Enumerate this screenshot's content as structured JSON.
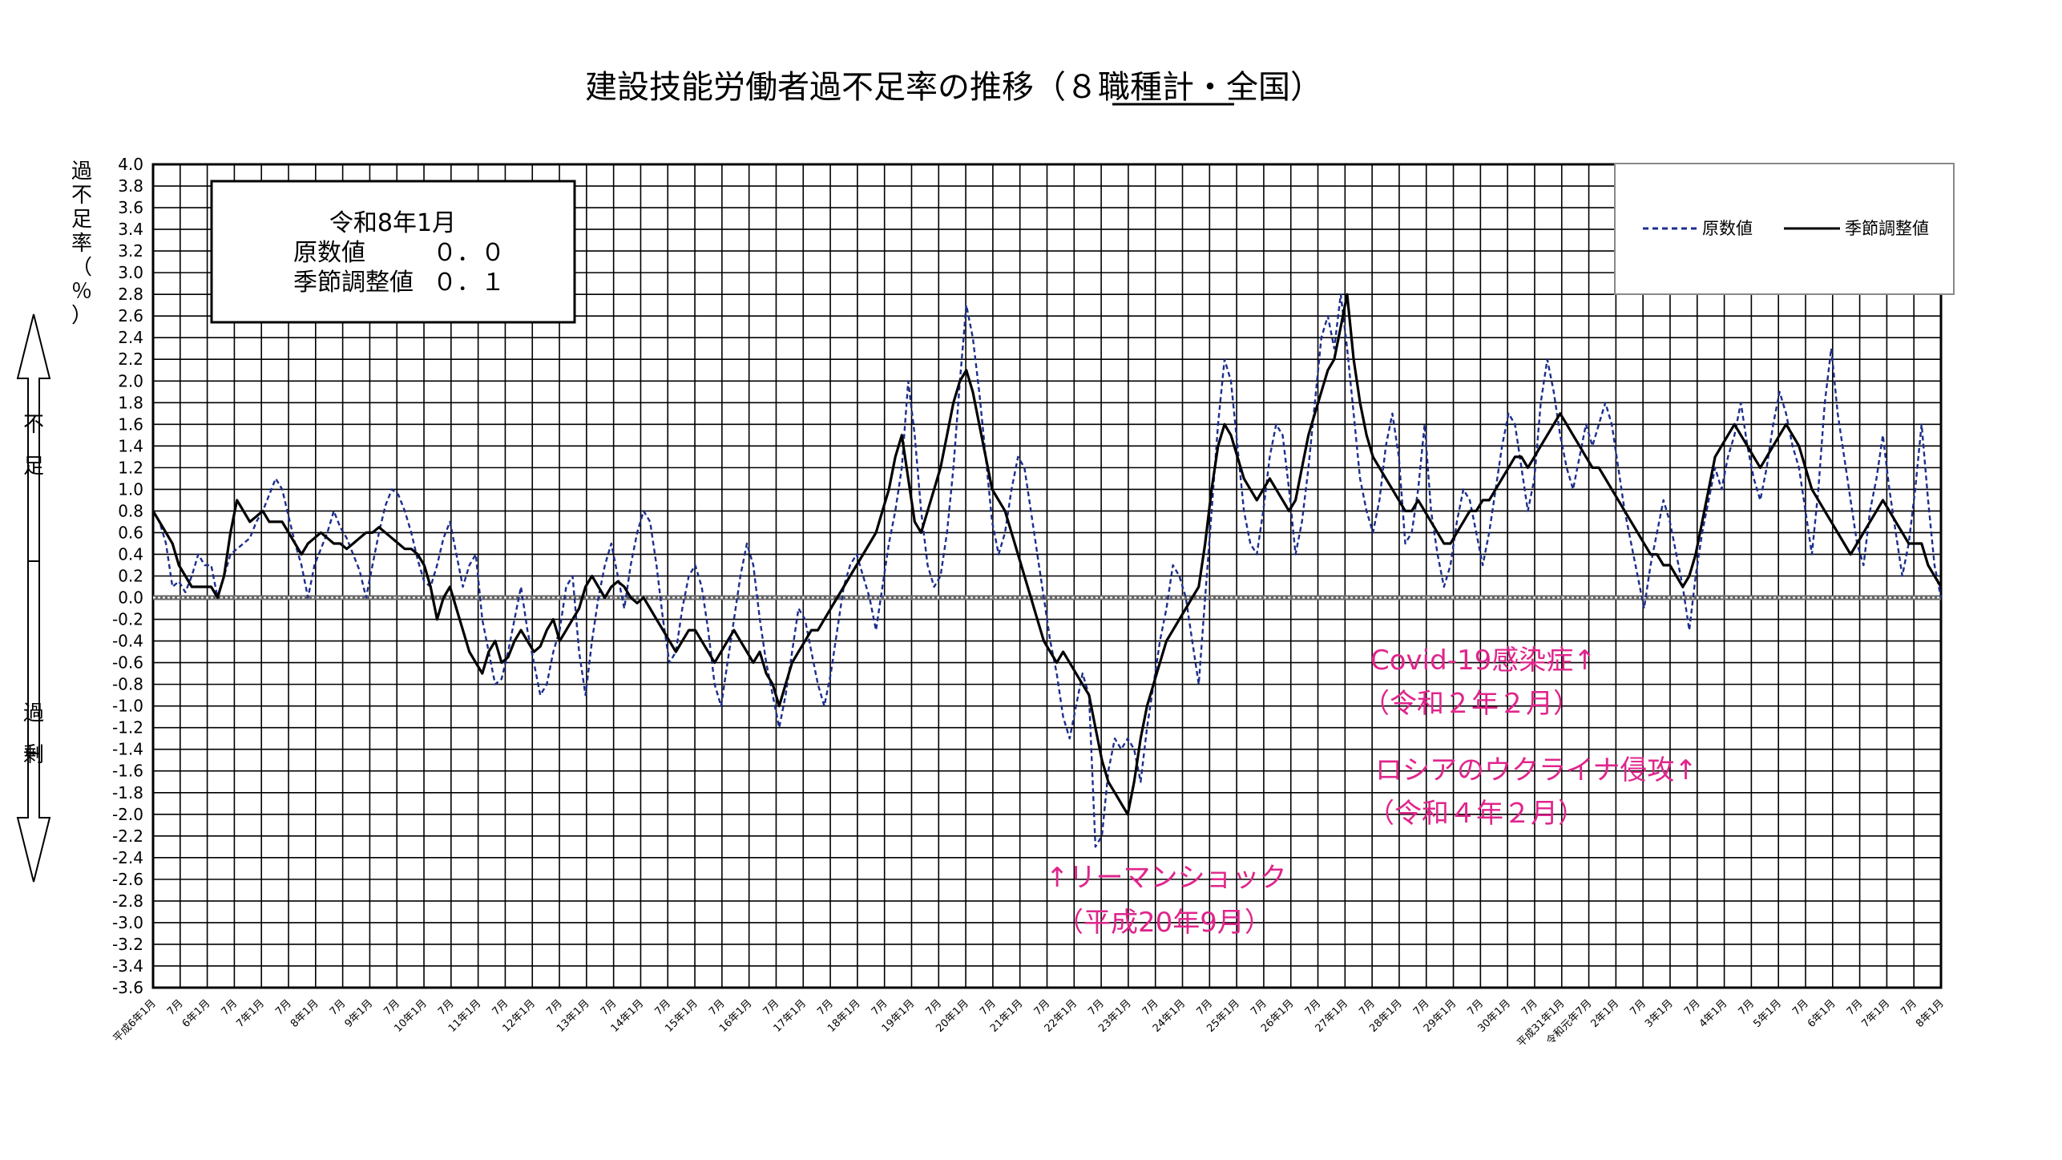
{
  "chart_data": {
    "type": "line",
    "title": "建設技能労働者過不足率の推移（８職種計・全国）",
    "title_underlined_part": "８職種計",
    "ylabel": "過不足率（％）",
    "y_direction_labels": {
      "top": "不足",
      "bottom": "過剰"
    },
    "ylim": [
      -3.6,
      4.0
    ],
    "ytick_step": 0.2,
    "grid": true,
    "legend_position": "top-right",
    "info_box": {
      "line1": "令和8年1月",
      "line2_label": "原数値",
      "line2_value": "０．０",
      "line3_label": "季節調整値",
      "line3_value": "０．１"
    },
    "series": [
      {
        "name": "原数値",
        "style": "dashed",
        "color": "#1c2e8c",
        "values": [
          0.8,
          0.7,
          0.5,
          0.1,
          0.15,
          0.05,
          0.2,
          0.4,
          0.3,
          0.3,
          0.0,
          0.2,
          0.4,
          0.45,
          0.5,
          0.55,
          0.7,
          0.8,
          0.95,
          1.1,
          1.0,
          0.75,
          0.5,
          0.3,
          0.0,
          0.3,
          0.45,
          0.6,
          0.8,
          0.65,
          0.55,
          0.4,
          0.25,
          0.0,
          0.3,
          0.6,
          0.85,
          1.0,
          0.95,
          0.8,
          0.6,
          0.35,
          0.15,
          0.1,
          0.3,
          0.55,
          0.7,
          0.4,
          0.1,
          0.3,
          0.4,
          -0.2,
          -0.5,
          -0.8,
          -0.75,
          -0.5,
          -0.2,
          0.1,
          -0.3,
          -0.6,
          -0.9,
          -0.8,
          -0.5,
          -0.3,
          0.1,
          0.2,
          -0.5,
          -0.9,
          -0.4,
          0.0,
          0.3,
          0.5,
          0.2,
          -0.1,
          0.3,
          0.6,
          0.8,
          0.7,
          0.3,
          -0.2,
          -0.6,
          -0.5,
          -0.1,
          0.2,
          0.3,
          0.1,
          -0.3,
          -0.8,
          -1.0,
          -0.6,
          -0.2,
          0.2,
          0.5,
          0.3,
          -0.2,
          -0.6,
          -0.9,
          -1.2,
          -0.9,
          -0.5,
          -0.1,
          -0.2,
          -0.5,
          -0.8,
          -1.0,
          -0.7,
          -0.3,
          0.1,
          0.3,
          0.4,
          0.2,
          0.0,
          -0.3,
          0.1,
          0.5,
          0.8,
          1.2,
          2.0,
          1.5,
          0.8,
          0.3,
          0.1,
          0.2,
          0.6,
          1.2,
          2.0,
          2.7,
          2.4,
          1.9,
          1.3,
          0.7,
          0.4,
          0.6,
          1.0,
          1.3,
          1.2,
          0.8,
          0.4,
          0.0,
          -0.4,
          -0.7,
          -1.1,
          -1.3,
          -1.0,
          -0.7,
          -0.9,
          -2.3,
          -2.2,
          -1.6,
          -1.3,
          -1.4,
          -1.3,
          -1.4,
          -1.7,
          -1.2,
          -0.8,
          -0.4,
          -0.1,
          0.3,
          0.2,
          0.0,
          -0.4,
          -0.8,
          0.0,
          0.8,
          1.6,
          2.2,
          2.0,
          1.4,
          0.8,
          0.5,
          0.4,
          0.8,
          1.3,
          1.6,
          1.5,
          1.0,
          0.4,
          0.7,
          1.2,
          1.8,
          2.4,
          2.6,
          2.3,
          2.8,
          2.3,
          1.7,
          1.1,
          0.8,
          0.6,
          0.9,
          1.4,
          1.7,
          1.3,
          0.5,
          0.6,
          1.0,
          1.6,
          0.8,
          0.4,
          0.1,
          0.3,
          0.7,
          1.0,
          0.9,
          0.6,
          0.3,
          0.6,
          1.0,
          1.4,
          1.7,
          1.6,
          1.2,
          0.8,
          1.1,
          1.8,
          2.2,
          1.9,
          1.5,
          1.2,
          1.0,
          1.3,
          1.6,
          1.4,
          1.6,
          1.8,
          1.6,
          1.2,
          0.8,
          0.5,
          0.2,
          -0.1,
          0.3,
          0.6,
          0.9,
          0.7,
          0.4,
          0.1,
          -0.3,
          0.2,
          0.6,
          0.9,
          1.2,
          1.0,
          1.3,
          1.5,
          1.8,
          1.4,
          1.1,
          0.9,
          1.2,
          1.6,
          1.9,
          1.7,
          1.4,
          1.2,
          0.8,
          0.4,
          1.0,
          1.8,
          2.3,
          1.7,
          1.3,
          0.9,
          0.5,
          0.3,
          0.8,
          1.1,
          1.5,
          1.0,
          0.6,
          0.2,
          0.5,
          1.0,
          1.6,
          0.9,
          0.3,
          0.0
        ]
      },
      {
        "name": "季節調整値",
        "style": "solid",
        "color": "#000000",
        "values": [
          0.8,
          0.7,
          0.6,
          0.5,
          0.3,
          0.2,
          0.1,
          0.1,
          0.1,
          0.1,
          0.0,
          0.2,
          0.6,
          0.9,
          0.8,
          0.7,
          0.75,
          0.8,
          0.7,
          0.7,
          0.7,
          0.6,
          0.5,
          0.4,
          0.5,
          0.55,
          0.6,
          0.55,
          0.5,
          0.5,
          0.45,
          0.5,
          0.55,
          0.6,
          0.6,
          0.65,
          0.6,
          0.55,
          0.5,
          0.45,
          0.45,
          0.4,
          0.3,
          0.1,
          -0.2,
          0.0,
          0.1,
          -0.1,
          -0.3,
          -0.5,
          -0.6,
          -0.7,
          -0.5,
          -0.4,
          -0.6,
          -0.55,
          -0.4,
          -0.3,
          -0.4,
          -0.5,
          -0.45,
          -0.3,
          -0.2,
          -0.4,
          -0.3,
          -0.2,
          -0.1,
          0.1,
          0.2,
          0.1,
          0.0,
          0.1,
          0.15,
          0.1,
          0.0,
          -0.05,
          0.0,
          -0.1,
          -0.2,
          -0.3,
          -0.4,
          -0.5,
          -0.4,
          -0.3,
          -0.3,
          -0.4,
          -0.5,
          -0.6,
          -0.5,
          -0.4,
          -0.3,
          -0.4,
          -0.5,
          -0.6,
          -0.5,
          -0.7,
          -0.8,
          -1.0,
          -0.8,
          -0.6,
          -0.5,
          -0.4,
          -0.3,
          -0.3,
          -0.2,
          -0.1,
          0.0,
          0.1,
          0.2,
          0.3,
          0.4,
          0.5,
          0.6,
          0.8,
          1.0,
          1.3,
          1.5,
          1.1,
          0.7,
          0.6,
          0.8,
          1.0,
          1.2,
          1.5,
          1.8,
          2.0,
          2.1,
          1.9,
          1.6,
          1.3,
          1.0,
          0.9,
          0.8,
          0.6,
          0.4,
          0.2,
          0.0,
          -0.2,
          -0.4,
          -0.5,
          -0.6,
          -0.5,
          -0.6,
          -0.7,
          -0.8,
          -0.9,
          -1.2,
          -1.5,
          -1.7,
          -1.8,
          -1.9,
          -2.0,
          -1.7,
          -1.3,
          -1.0,
          -0.8,
          -0.6,
          -0.4,
          -0.3,
          -0.2,
          -0.1,
          0.0,
          0.1,
          0.5,
          1.0,
          1.4,
          1.6,
          1.5,
          1.3,
          1.1,
          1.0,
          0.9,
          1.0,
          1.1,
          1.0,
          0.9,
          0.8,
          0.9,
          1.2,
          1.5,
          1.7,
          1.9,
          2.1,
          2.2,
          2.5,
          2.8,
          2.2,
          1.8,
          1.5,
          1.3,
          1.2,
          1.1,
          1.0,
          0.9,
          0.8,
          0.8,
          0.9,
          0.8,
          0.7,
          0.6,
          0.5,
          0.5,
          0.6,
          0.7,
          0.8,
          0.8,
          0.9,
          0.9,
          1.0,
          1.1,
          1.2,
          1.3,
          1.3,
          1.2,
          1.3,
          1.4,
          1.5,
          1.6,
          1.7,
          1.6,
          1.5,
          1.4,
          1.3,
          1.2,
          1.2,
          1.1,
          1.0,
          0.9,
          0.8,
          0.7,
          0.6,
          0.5,
          0.4,
          0.4,
          0.3,
          0.3,
          0.2,
          0.1,
          0.2,
          0.4,
          0.7,
          1.0,
          1.3,
          1.4,
          1.5,
          1.6,
          1.5,
          1.4,
          1.3,
          1.2,
          1.3,
          1.4,
          1.5,
          1.6,
          1.5,
          1.4,
          1.2,
          1.0,
          0.9,
          0.8,
          0.7,
          0.6,
          0.5,
          0.4,
          0.5,
          0.6,
          0.7,
          0.8,
          0.9,
          0.8,
          0.7,
          0.6,
          0.5,
          0.5,
          0.5,
          0.3,
          0.2,
          0.1
        ]
      }
    ],
    "x_tick_labels": [
      "平成6年1月",
      "7月",
      "6年1月",
      "7月",
      "7年1月",
      "7月",
      "8年1月",
      "7月",
      "9年1月",
      "7月",
      "10年1月",
      "7月",
      "11年1月",
      "7月",
      "12年1月",
      "7月",
      "13年1月",
      "7月",
      "14年1月",
      "7月",
      "15年1月",
      "7月",
      "16年1月",
      "7月",
      "17年1月",
      "7月",
      "18年1月",
      "7月",
      "19年1月",
      "7月",
      "20年1月",
      "7月",
      "21年1月",
      "7月",
      "22年1月",
      "7月",
      "23年1月",
      "7月",
      "24年1月",
      "7月",
      "25年1月",
      "7月",
      "26年1月",
      "7月",
      "27年1月",
      "7月",
      "28年1月",
      "7月",
      "29年1月",
      "7月",
      "30年1月",
      "7月",
      "平成31年1月",
      "令和元年7月",
      "2年1月",
      "7月",
      "3年1月",
      "7月",
      "4年1月",
      "7月",
      "5年1月",
      "7月",
      "6年1月",
      "7月",
      "7年1月",
      "7月",
      "8年1月"
    ],
    "annotations": [
      {
        "line1": "↑リーマンショック",
        "line2": "（平成20年9月）",
        "color": "#e0258c"
      },
      {
        "line1": "Covid-19感染症↑",
        "line2": "（令和２年２月）",
        "color": "#e0258c"
      },
      {
        "line1": "ロシアのウクライナ侵攻↑",
        "line2": "（令和４年２月）",
        "color": "#e0258c"
      }
    ]
  }
}
